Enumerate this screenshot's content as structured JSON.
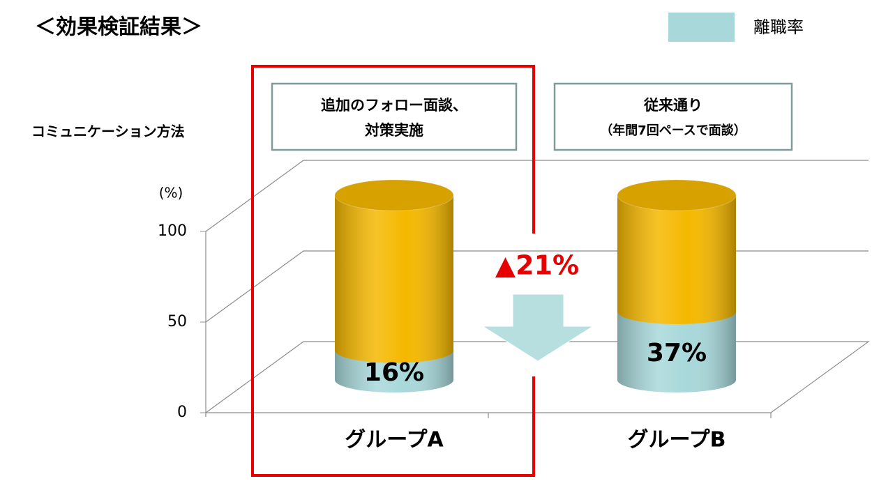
{
  "title": "＜効果検証結果＞",
  "method_label": "コミュニケーション方法",
  "methods": [
    [
      "追加のフォロー面談、",
      "対策実施"
    ],
    [
      "従来通り",
      "（年間7回ペースで面談）"
    ]
  ],
  "change_label": "▲21%",
  "chart_data": {
    "type": "bar",
    "stacked": true,
    "cylinder": true,
    "y_label": "(%)",
    "categories": [
      "グループA",
      "グループB"
    ],
    "series": [
      {
        "name": "離職率",
        "color": "#a8d8da",
        "values": [
          16,
          37
        ],
        "value_labels": [
          "16%",
          "37%"
        ]
      },
      {
        "color": "#f5b800",
        "values": [
          84,
          63
        ]
      }
    ],
    "ylim": [
      0,
      100
    ],
    "yticks": [
      0,
      50,
      100
    ],
    "grid": true,
    "legend": "top-right"
  }
}
